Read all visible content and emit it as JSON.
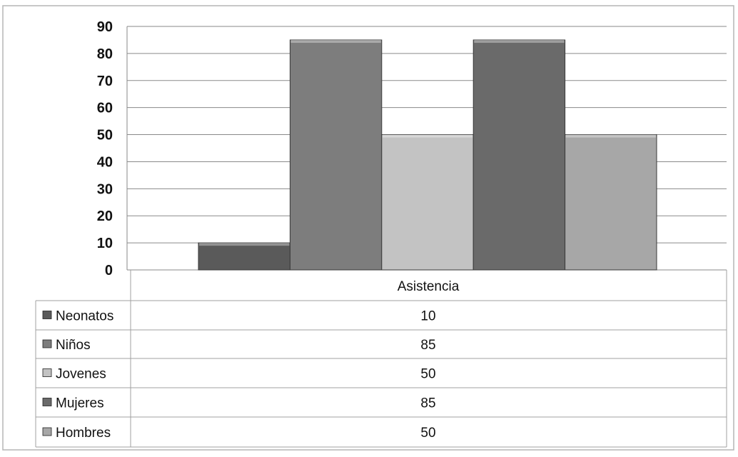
{
  "chart_data": {
    "type": "bar",
    "categories": [
      "Asistencia"
    ],
    "series": [
      {
        "name": "Neonatos",
        "values": [
          10
        ],
        "color": "#5a5a5a"
      },
      {
        "name": "Niños",
        "values": [
          85
        ],
        "color": "#7d7d7d"
      },
      {
        "name": "Jovenes",
        "values": [
          50
        ],
        "color": "#c3c3c3"
      },
      {
        "name": "Mujeres",
        "values": [
          85
        ],
        "color": "#6a6a6a"
      },
      {
        "name": "Hombres",
        "values": [
          50
        ],
        "color": "#a7a7a7"
      }
    ],
    "ylim": [
      0,
      90
    ],
    "yticks": [
      "0",
      "10",
      "20",
      "30",
      "40",
      "50",
      "60",
      "70",
      "80",
      "90"
    ],
    "grid": true,
    "legend": "data-table"
  }
}
